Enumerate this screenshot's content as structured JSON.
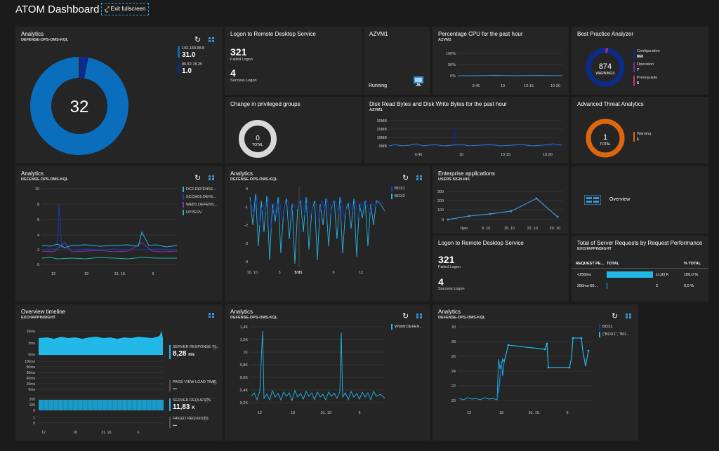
{
  "header": {
    "title": "ATOM Dashboard",
    "exit_fullscreen": "Exit fullscreen"
  },
  "tiles": {
    "analytics1": {
      "title": "Analytics",
      "subtitle": "DEFENSE-OPS-OMS-KQL",
      "center": "32",
      "legend": [
        {
          "ip": "192.168.88.8",
          "value": "31.0"
        },
        {
          "ip": "80.82.78.35",
          "value": "1.0"
        }
      ]
    },
    "logon1": {
      "title": "Logon to Remote Desktop Service",
      "failed_count": "321",
      "failed_label": "Failed Logon",
      "success_count": "4",
      "success_label": "Success Logon"
    },
    "azvm": {
      "title": "AZVM1",
      "status": "Running"
    },
    "cpu": {
      "title": "Percentage CPU for the past hour",
      "subtitle": "AZVM1",
      "yticks": [
        "100%",
        "50%",
        "0%"
      ],
      "xticks": [
        "9:45",
        "10",
        "10:15",
        "10:30"
      ]
    },
    "bpa": {
      "title": "Best Practice Analyzer",
      "center_value": "874",
      "center_label": "WARNINGS",
      "legend": [
        {
          "label": "Configuration",
          "value": "860"
        },
        {
          "label": "Operation",
          "value": "7"
        },
        {
          "label": "Prerequisite",
          "value": "5"
        }
      ]
    },
    "privgroups": {
      "title": "Change in privileged groups",
      "center_value": "0",
      "center_label": "TOTAL"
    },
    "disk": {
      "title": "Disk Read Bytes and Disk Write Bytes for the past hour",
      "subtitle": "AZVM1",
      "yticks": [
        "30MB",
        "20MB",
        "10MB",
        "0MB"
      ],
      "xticks": [
        "9:45",
        "10",
        "10:15",
        "10:30"
      ]
    },
    "ata": {
      "title": "Advanced Threat Analytics",
      "center_value": "1",
      "center_label": "TOTAL",
      "legend": [
        {
          "label": "Warning",
          "value": "1"
        }
      ]
    },
    "analytics2": {
      "title": "Analytics",
      "subtitle": "DEFENSE-OPS-OMS-KQL",
      "yticks": [
        "10",
        "8",
        "6",
        "4",
        "2",
        "0"
      ],
      "xticks": [
        "12",
        "18",
        "31. 10.",
        "6"
      ],
      "legend": [
        "DC2.DEFENSE...",
        "SCCM01.DEFE...",
        "WEB1.DEFENS...",
        "HYPERV"
      ]
    },
    "analytics3": {
      "title": "Analytics",
      "subtitle": "DEFENSE-OPS-OMS-KQL",
      "yticks": [
        "0",
        "-1",
        "-2",
        "-3",
        "-4"
      ],
      "xticks": [
        "10. 10.",
        "3",
        "5:01",
        "9",
        "12"
      ],
      "legend": [
        "BOX1",
        "BOX2"
      ]
    },
    "enterprise": {
      "title": "Enterprise applications",
      "subtitle": "USERS SIGN-INS",
      "yticks": [
        "300",
        "200",
        "100",
        "0"
      ],
      "xticks": [
        "říjen",
        "8. 10.",
        "15. 10.",
        "22. 10.",
        "29. 10."
      ]
    },
    "overview": {
      "label": "Overview"
    },
    "logon2": {
      "title": "Logon to Remote Desktop Service",
      "failed_count": "321",
      "failed_label": "Failed Logon",
      "success_count": "4",
      "success_label": "Success Logon"
    },
    "serverreq": {
      "title": "Total of Server Requests by Request Performance",
      "subtitle": "EXCHAPPINSIGHT",
      "columns": [
        "REQUEST PE...",
        "TOTAL",
        "% TOTAL"
      ],
      "rows": [
        {
          "name": "<250ms",
          "total": "11,83 K",
          "pct": "100,0 %"
        },
        {
          "name": "250ms-50...",
          "total": "2",
          "pct": "0,0 %"
        }
      ]
    },
    "overviewtl": {
      "title": "Overview timeline",
      "subtitle": "EXCHAPPINSIGHT",
      "m1": {
        "label": "SERVER RESPONSE TI...",
        "value": "8,28",
        "unit": "ms",
        "yticks": [
          "10ms",
          "5ms",
          "0ms"
        ]
      },
      "m2": {
        "label": "PAGE VIEW LOAD TIME",
        "value": "--",
        "yticks": [
          "100ms",
          "80ms",
          "60ms",
          "40ms",
          "20ms",
          "0ms"
        ]
      },
      "m3": {
        "label": "SERVER REQUESTS",
        "value": "11,83",
        "unit": "K",
        "yticks": [
          "200",
          "100",
          "0"
        ]
      },
      "m4": {
        "label": "FAILED REQUESTS",
        "value": "--",
        "yticks": [
          "1",
          "0"
        ]
      },
      "xticks": [
        "12",
        "18",
        "31. 10.",
        "6"
      ]
    },
    "analytics4": {
      "title": "Analytics",
      "subtitle": "DEFENSE-OPS-OMS-KQL",
      "yticks": [
        "1,4K",
        "1,2K",
        "1K",
        "0,8K",
        "0,6K",
        "0,4K",
        "0,2K"
      ],
      "xticks": [
        "12",
        "18",
        "31. 10.",
        "6"
      ],
      "legend": [
        "WWW.DEFEN..."
      ]
    },
    "analytics5": {
      "title": "Analytics",
      "subtitle": "DEFENSE-OPS-OMS-KQL",
      "yticks": [
        "30",
        "28",
        "26",
        "24",
        "22",
        "20"
      ],
      "xticks": [
        "12",
        "18",
        "31. 10.",
        "6"
      ],
      "legend": [
        "BOX1",
        "{\"BOX1\", \"BO..."
      ]
    }
  },
  "colors": {
    "accent": "#3a95d6",
    "blue": "#0a6ebd",
    "navy": "#0b2a8a",
    "cyan": "#22b8e8",
    "purple": "#6b2fa0",
    "orange": "#e0660e",
    "teal": "#1fb5a8",
    "pink": "#d22f86"
  }
}
